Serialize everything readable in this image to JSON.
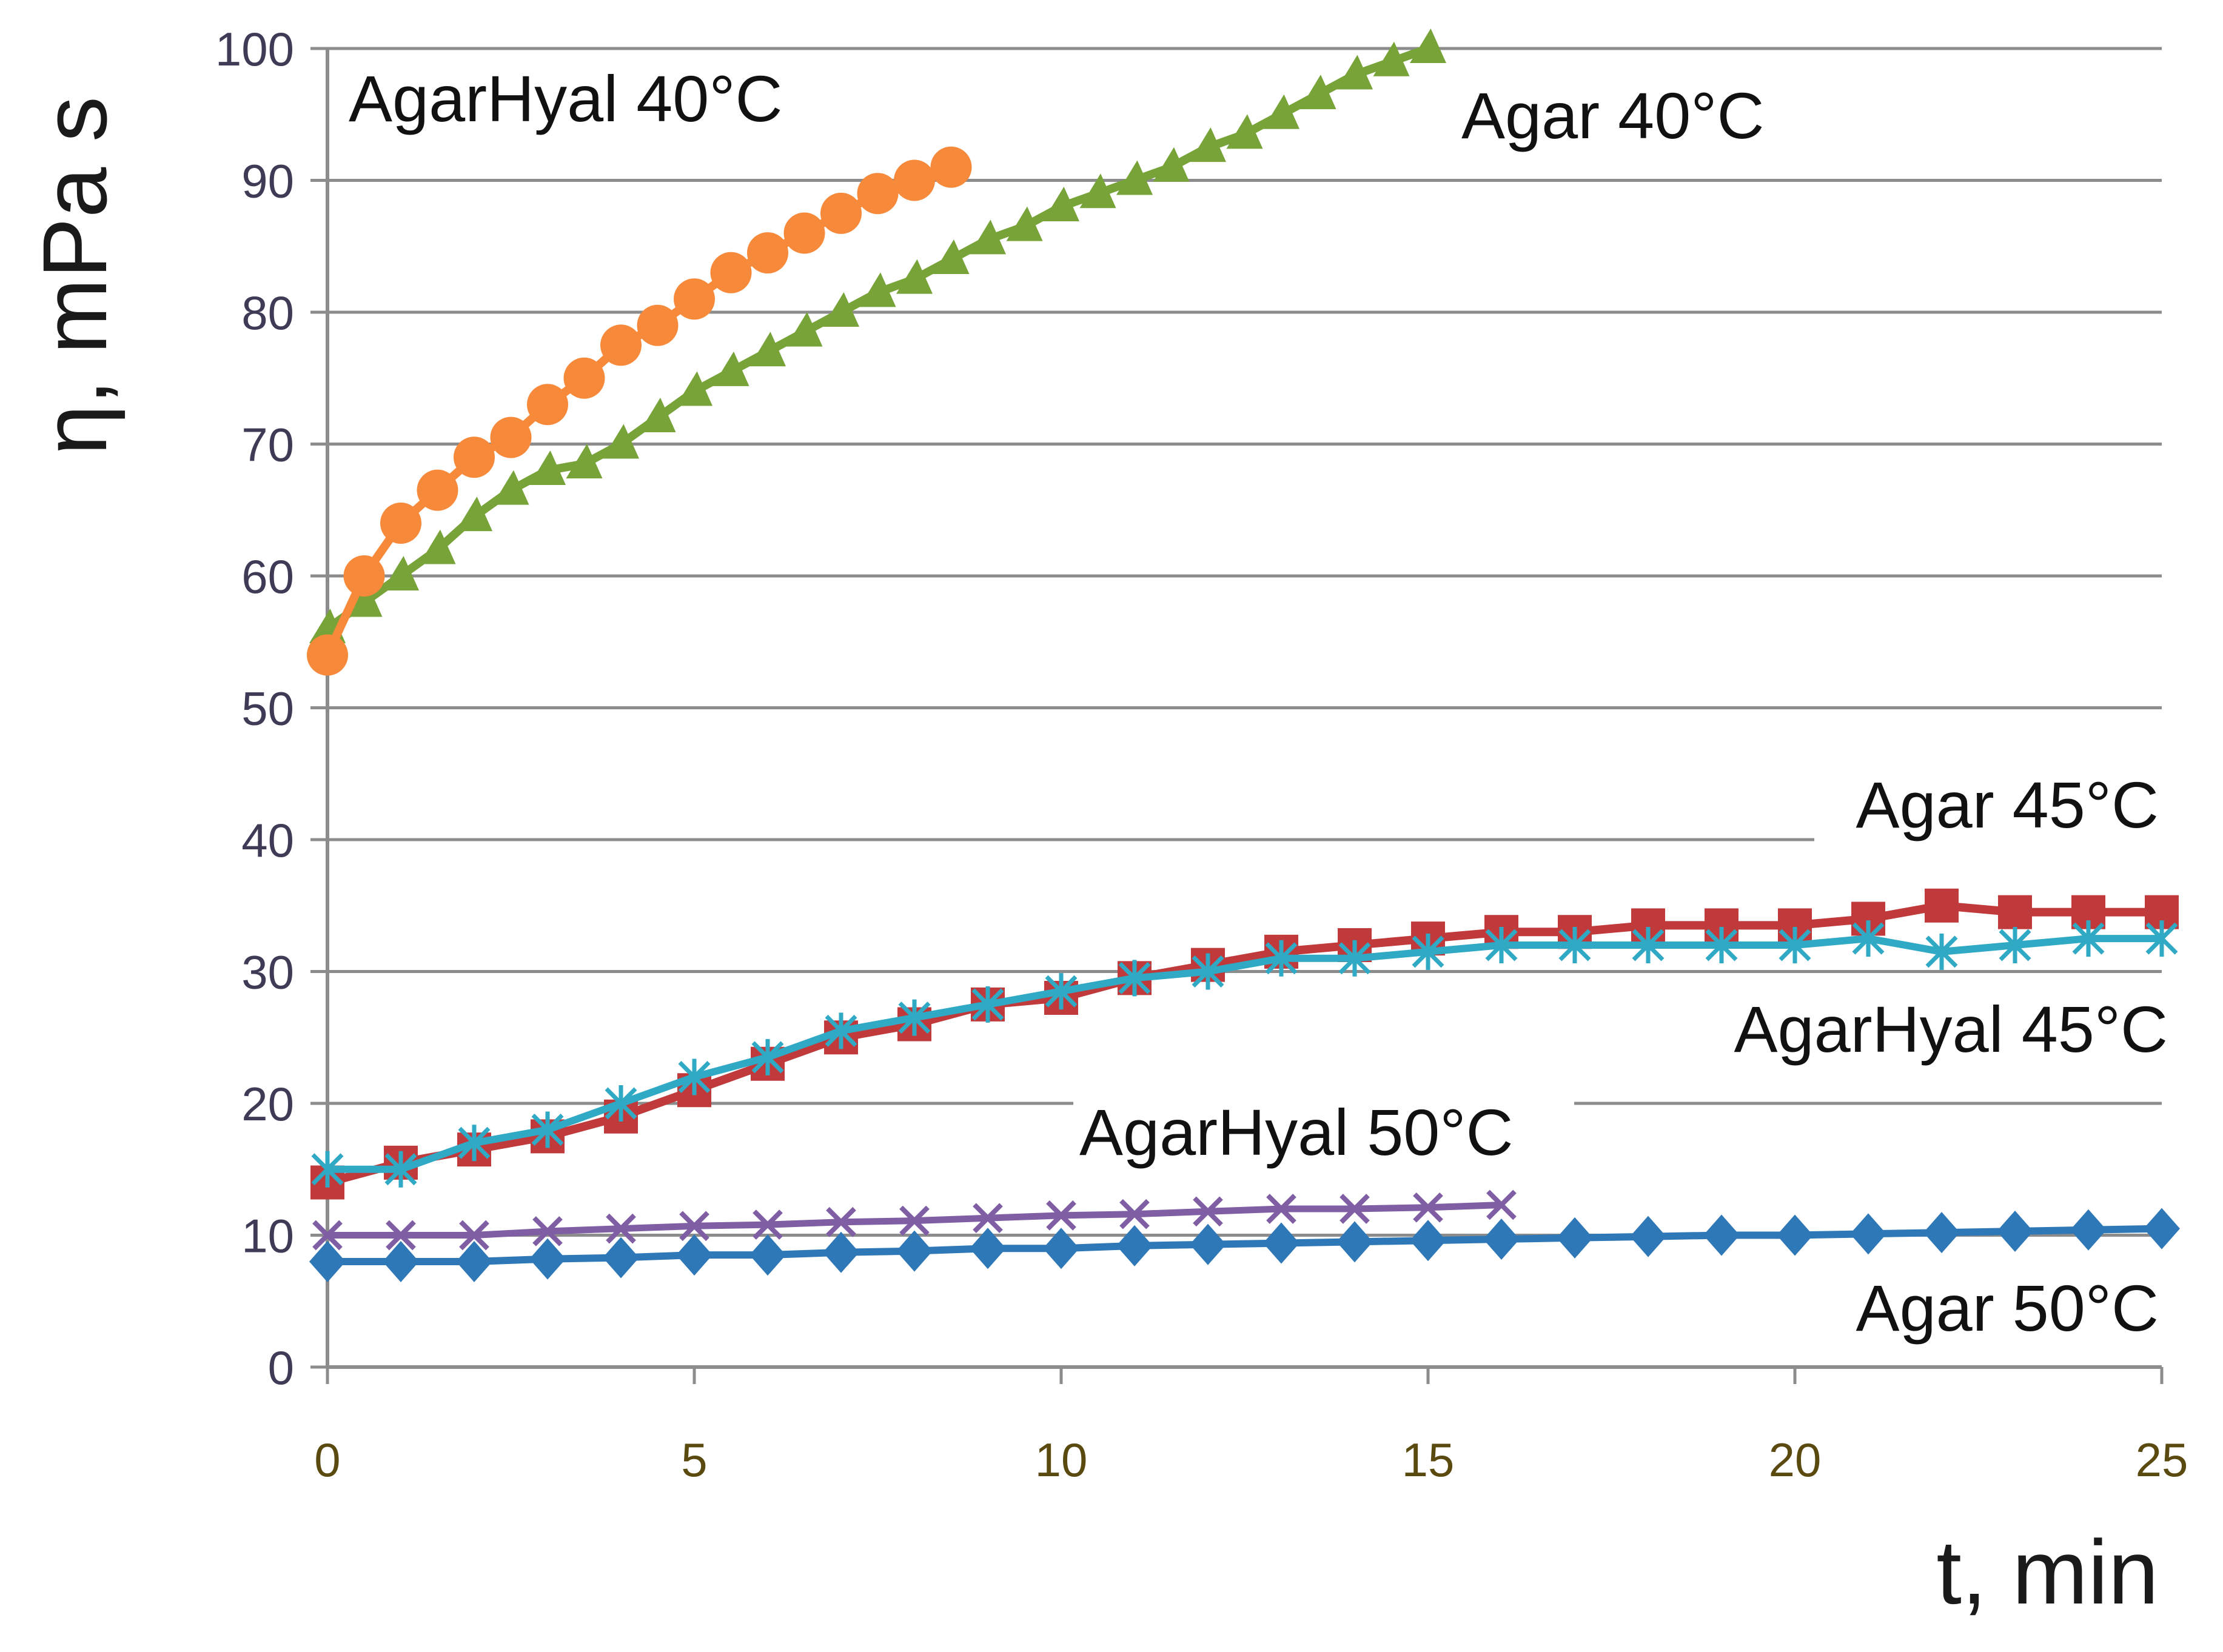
{
  "chart_data": {
    "type": "line",
    "title": "",
    "xlabel": "t, min",
    "ylabel": "η, mPa s",
    "xlim": [
      0,
      25
    ],
    "ylim": [
      0,
      100
    ],
    "xticks": [
      0,
      5,
      10,
      15,
      20,
      25
    ],
    "yticks": [
      0,
      10,
      20,
      30,
      40,
      50,
      60,
      70,
      80,
      90,
      100
    ],
    "grid": true,
    "legend": "inline labels",
    "series": [
      {
        "name": "Agar 40°C",
        "label": "Agar 40°C",
        "color": "#77a338",
        "marker": "triangle",
        "x": [
          0,
          0.5,
          1,
          1.5,
          2,
          2.5,
          3,
          3.5,
          4,
          4.5,
          5,
          5.5,
          6,
          6.5,
          7,
          7.5,
          8,
          8.5,
          9,
          9.5,
          10,
          10.5,
          11,
          11.5,
          12,
          12.5,
          13,
          13.5,
          14,
          14.5,
          15
        ],
        "y": [
          56,
          58,
          60,
          62,
          64.5,
          66.5,
          68,
          68.5,
          70,
          72,
          74,
          75.5,
          77,
          78.5,
          80,
          81.5,
          82.5,
          84,
          85.5,
          86.5,
          88,
          89,
          90,
          91,
          92.5,
          93.5,
          95,
          96.5,
          98,
          99,
          100
        ]
      },
      {
        "name": "AgarHyal 40°C",
        "label": "AgarHyal 40°C",
        "color": "#f7893b",
        "marker": "circle",
        "x": [
          0,
          0.5,
          1,
          1.5,
          2,
          2.5,
          3,
          3.5,
          4,
          4.5,
          5,
          5.5,
          6,
          6.5,
          7,
          7.5,
          8,
          8.5
        ],
        "y": [
          54,
          60,
          64,
          66.5,
          69,
          70.5,
          73,
          75,
          77.5,
          79,
          81,
          83,
          84.5,
          86,
          87.5,
          89,
          90,
          91
        ]
      },
      {
        "name": "Agar 45°C",
        "label": "Agar 45°C",
        "color": "#c0393b",
        "marker": "square",
        "x": [
          0,
          1,
          2,
          3,
          4,
          5,
          6,
          7,
          8,
          9,
          10,
          11,
          12,
          13,
          14,
          15,
          16,
          17,
          18,
          19,
          20,
          21,
          22,
          23,
          24,
          25
        ],
        "y": [
          14,
          15.5,
          16.5,
          17.5,
          19,
          21,
          23,
          25,
          26,
          27.5,
          28,
          29.5,
          30.5,
          31.5,
          32,
          32.5,
          33,
          33,
          33.5,
          33.5,
          33.5,
          34,
          35,
          34.5,
          34.5,
          34.5
        ]
      },
      {
        "name": "AgarHyal 45°C",
        "label": "AgarHyal 45°C",
        "color": "#2fa9c4",
        "marker": "star",
        "x": [
          0,
          1,
          2,
          3,
          4,
          5,
          6,
          7,
          8,
          9,
          10,
          11,
          12,
          13,
          14,
          15,
          16,
          17,
          18,
          19,
          20,
          21,
          22,
          23,
          24,
          25
        ],
        "y": [
          15,
          15,
          17,
          18,
          20,
          22,
          23.5,
          25.5,
          26.5,
          27.5,
          28.5,
          29.5,
          30,
          31,
          31,
          31.5,
          32,
          32,
          32,
          32,
          32,
          32.5,
          31.5,
          32,
          32.5,
          32.5
        ]
      },
      {
        "name": "AgarHyal 50°C",
        "label": "AgarHyal 50°C",
        "color": "#7f5ea3",
        "marker": "x",
        "x": [
          0,
          1,
          2,
          3,
          4,
          5,
          6,
          7,
          8,
          9,
          10,
          11,
          12,
          13,
          14,
          15,
          16
        ],
        "y": [
          10,
          10,
          10,
          10.3,
          10.5,
          10.7,
          10.8,
          11,
          11.1,
          11.3,
          11.5,
          11.6,
          11.8,
          12,
          12,
          12.1,
          12.3
        ]
      },
      {
        "name": "Agar 50°C",
        "label": "Agar 50°C",
        "color": "#2f78b7",
        "marker": "diamond",
        "x": [
          0,
          1,
          2,
          3,
          4,
          5,
          6,
          7,
          8,
          9,
          10,
          11,
          12,
          13,
          14,
          15,
          16,
          17,
          18,
          19,
          20,
          21,
          22,
          23,
          24,
          25
        ],
        "y": [
          8,
          8,
          8,
          8.2,
          8.3,
          8.5,
          8.5,
          8.7,
          8.8,
          9,
          9,
          9.2,
          9.3,
          9.4,
          9.5,
          9.6,
          9.7,
          9.8,
          9.9,
          10,
          10,
          10.1,
          10.2,
          10.3,
          10.4,
          10.5
        ]
      }
    ]
  }
}
